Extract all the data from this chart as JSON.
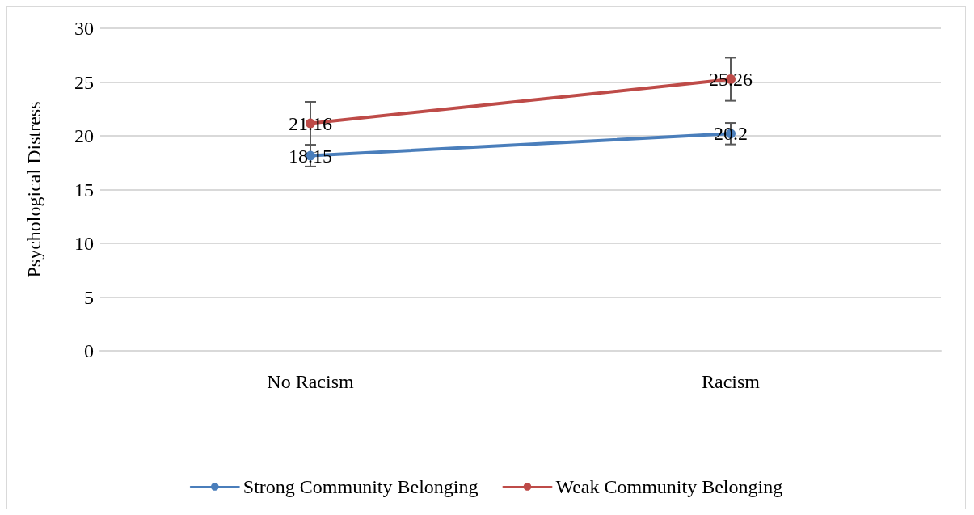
{
  "chart_data": {
    "type": "line",
    "ylabel": "Psychological Distress",
    "categories": [
      "No Racism",
      "Racism"
    ],
    "series": [
      {
        "name": "Strong Community Belonging",
        "color": "#4a7ebb",
        "values": [
          18.15,
          20.2
        ],
        "errors": [
          1,
          1
        ]
      },
      {
        "name": "Weak Community Belonging",
        "color": "#be4b48",
        "values": [
          21.16,
          25.26
        ],
        "errors": [
          2,
          2
        ]
      }
    ],
    "ylim": [
      0,
      30
    ],
    "yticks": [
      0,
      5,
      10,
      15,
      20,
      25,
      30
    ],
    "grid": "y",
    "legend": "bottom",
    "marker": "circle",
    "line_style": "solid",
    "data_labels": true
  }
}
